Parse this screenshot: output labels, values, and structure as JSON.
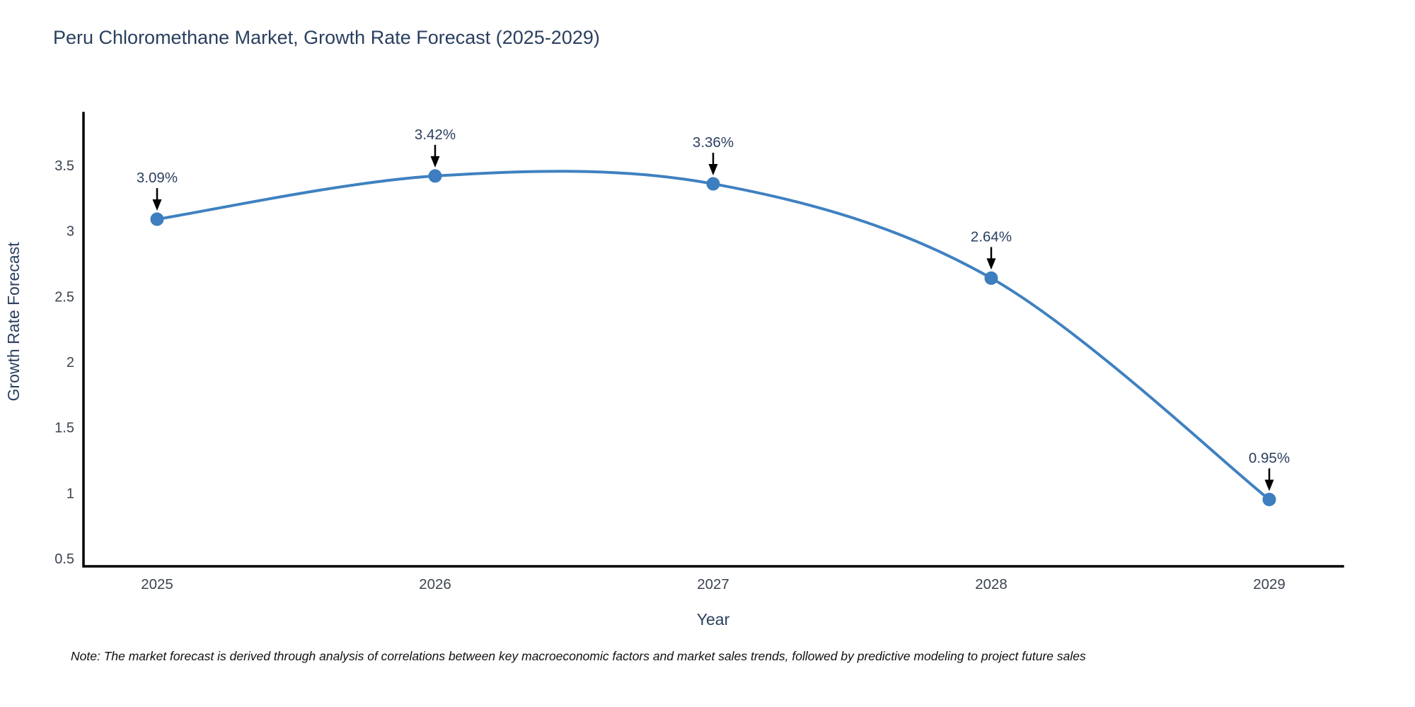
{
  "title": "Peru Chloromethane Market, Growth Rate Forecast (2025-2029)",
  "note": "Note: The market forecast is derived through analysis of correlations between key macroeconomic factors and market sales trends, followed by predictive modeling to project future sales",
  "chart_data": {
    "type": "line",
    "title": "Peru Chloromethane Market, Growth Rate Forecast (2025-2029)",
    "xlabel": "Year",
    "ylabel": "Growth Rate Forecast",
    "x": [
      2025,
      2026,
      2027,
      2028,
      2029
    ],
    "values": [
      3.09,
      3.42,
      3.36,
      2.64,
      0.95
    ],
    "point_labels": [
      "3.09%",
      "3.42%",
      "3.36%",
      "2.64%",
      "0.95%"
    ],
    "x_tick_labels": [
      "2025",
      "2026",
      "2027",
      "2028",
      "2029"
    ],
    "y_ticks": [
      0.5,
      1,
      1.5,
      2,
      2.5,
      3,
      3.5
    ],
    "y_tick_labels": [
      "0.5",
      "1",
      "1.5",
      "2",
      "2.5",
      "3",
      "3.5"
    ],
    "ylim": [
      0.44,
      3.9
    ],
    "grid": false,
    "legend": "none",
    "line_shape": "spline",
    "marker": "circle",
    "annotation_arrows": true,
    "colors": {
      "line": "#3f81c1",
      "marker": "#3c7ebf",
      "arrow": "#000000",
      "axis_line": "#000000",
      "title_text": "#2a3f5f",
      "axis_title_text": "#2a3f5f",
      "tick_text": "#3b4450",
      "annotation_text": "#2a3f5f",
      "background": "#ffffff"
    }
  }
}
